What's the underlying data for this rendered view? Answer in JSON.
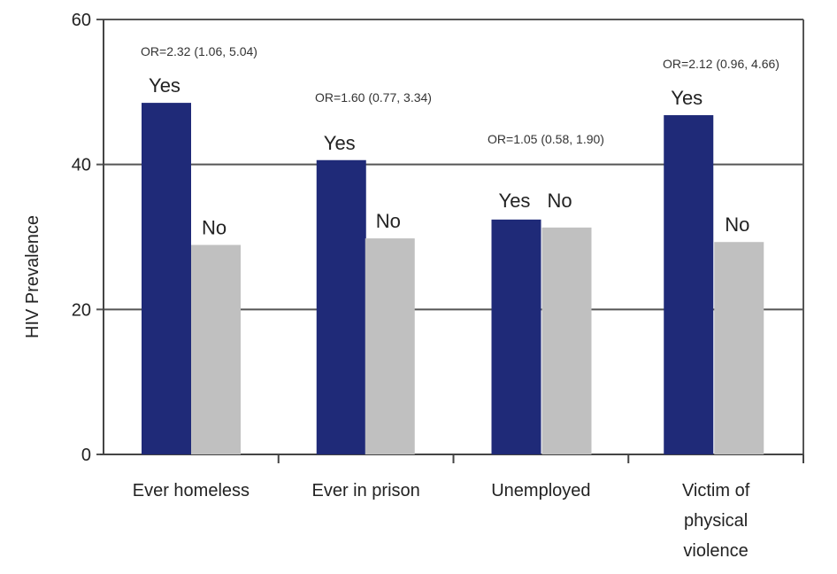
{
  "chart_data": {
    "type": "bar",
    "title": "",
    "xlabel": "",
    "ylabel": "HIV Prevalence",
    "ylim": [
      0,
      60
    ],
    "yticks": [
      0,
      20,
      40,
      60
    ],
    "grid": true,
    "categories": [
      "Ever homeless",
      "Ever in prison",
      "Unemployed",
      "Victim of physical violence"
    ],
    "category_lines": [
      [
        "Ever homeless"
      ],
      [
        "Ever in prison"
      ],
      [
        "Unemployed"
      ],
      [
        "Victim of",
        "physical",
        "violence"
      ]
    ],
    "series": [
      {
        "name": "Yes",
        "color": "#1f2a78",
        "values": [
          48.5,
          40.6,
          32.4,
          46.8
        ]
      },
      {
        "name": "No",
        "color": "#c0c0c0",
        "values": [
          28.9,
          29.8,
          31.3,
          29.3
        ]
      }
    ],
    "annotations": [
      "OR=2.32 (1.06, 5.04)",
      "OR=1.60 (0.77, 3.34)",
      "OR=1.05 (0.58, 1.90)",
      "OR=2.12 (0.96, 4.66)"
    ]
  }
}
